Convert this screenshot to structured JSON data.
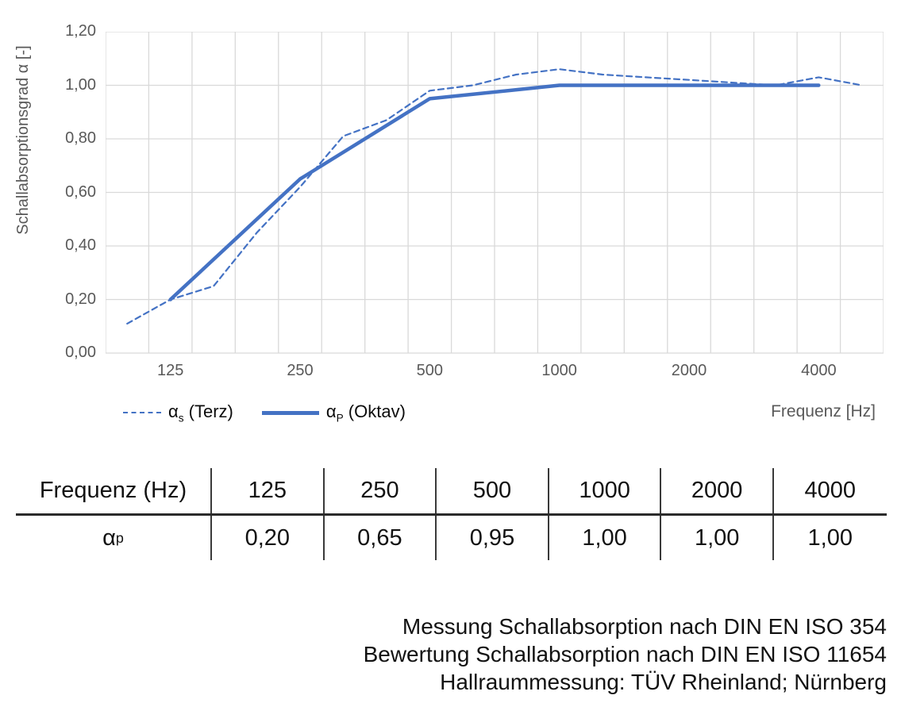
{
  "chart": {
    "y_axis_title": "Schallabsorptionsgrad α [-]",
    "x_axis_title": "Frequenz [Hz]",
    "legend": {
      "terz": {
        "symbol": "α",
        "sub": "s",
        "rest": " (Terz)"
      },
      "oktav": {
        "symbol": "α",
        "sub": "P",
        "rest": " (Oktav)"
      }
    }
  },
  "chart_data": {
    "type": "line",
    "title": "",
    "ylabel": "Schallabsorptionsgrad α [-]",
    "xlabel": "Frequenz [Hz]",
    "ylim": [
      0,
      1.2
    ],
    "y_ticks": [
      0,
      0.2,
      0.4,
      0.6,
      0.8,
      1.0,
      1.2
    ],
    "y_tick_labels": [
      "0,00",
      "0,20",
      "0,40",
      "0,60",
      "0,80",
      "1,00",
      "1,20"
    ],
    "x_scale": "third-octave bands, categorical (log spacing)",
    "x_categories": [
      100,
      125,
      160,
      200,
      250,
      315,
      400,
      500,
      630,
      800,
      1000,
      1250,
      1600,
      2000,
      2500,
      3150,
      4000,
      5000
    ],
    "x_tick_values": [
      125,
      250,
      500,
      1000,
      2000,
      4000
    ],
    "x_tick_labels": [
      "125",
      "250",
      "500",
      "1000",
      "2000",
      "4000"
    ],
    "grid": true,
    "legend_position": "below-left",
    "series": [
      {
        "name": "αs (Terz)",
        "line_style": "dashed",
        "color": "#4472C4",
        "stroke_width": 2.2,
        "x": [
          100,
          125,
          160,
          200,
          250,
          315,
          400,
          500,
          630,
          800,
          1000,
          1250,
          1600,
          2000,
          2500,
          3150,
          4000,
          5000
        ],
        "values": [
          0.11,
          0.2,
          0.25,
          0.45,
          0.62,
          0.81,
          0.87,
          0.98,
          1.0,
          1.04,
          1.06,
          1.04,
          1.03,
          1.02,
          1.01,
          1.0,
          1.03,
          1.0
        ]
      },
      {
        "name": "αP (Oktav)",
        "line_style": "solid",
        "color": "#4472C4",
        "stroke_width": 4.5,
        "x": [
          125,
          250,
          500,
          1000,
          2000,
          4000
        ],
        "values": [
          0.2,
          0.65,
          0.95,
          1.0,
          1.0,
          1.0
        ]
      }
    ]
  },
  "table": {
    "header_label": "Frequenz (Hz)",
    "row_label": {
      "symbol": "α",
      "sub": "p"
    },
    "frequencies": [
      "125",
      "250",
      "500",
      "1000",
      "2000",
      "4000"
    ],
    "values": [
      "0,20",
      "0,65",
      "0,95",
      "1,00",
      "1,00",
      "1,00"
    ]
  },
  "annotation": {
    "lines": [
      "Messung Schallabsorption nach DIN EN ISO 354",
      "Bewertung Schallabsorption nach DIN EN ISO 11654",
      "Hallraummessung: TÜV Rheinland; Nürnberg"
    ]
  },
  "colors": {
    "series_blue": "#4472C4",
    "gridline": "#D9D9D9",
    "tick_text": "#595959",
    "table_rule": "#2b2b2b",
    "text": "#121212"
  }
}
